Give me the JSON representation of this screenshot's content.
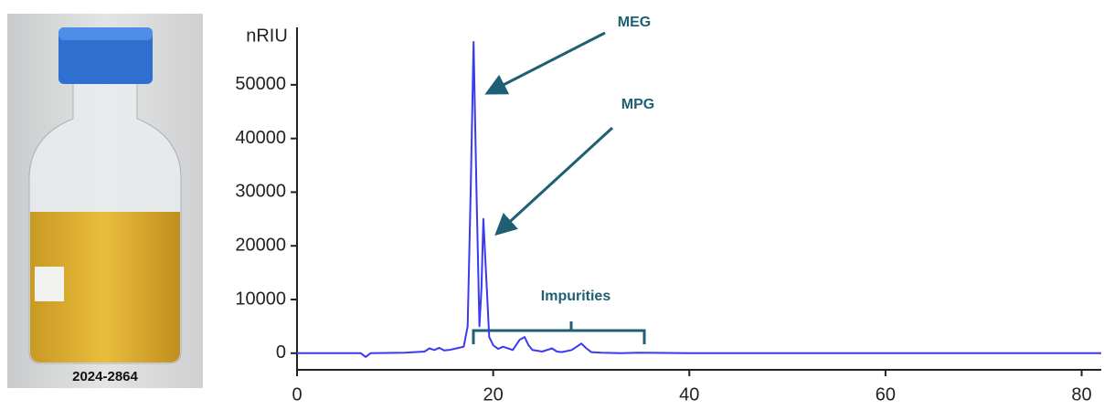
{
  "photo_label": "2024-2864",
  "chart_data": {
    "type": "line",
    "ylabel": "nRIU",
    "x": [
      0,
      6.5,
      7,
      7.5,
      11,
      13,
      13.5,
      14,
      14.5,
      15,
      15.5,
      16,
      17,
      17.4,
      17.7,
      18,
      18.3,
      18.6,
      18.8,
      19,
      19.3,
      19.6,
      20,
      20.5,
      21,
      22,
      22.7,
      23.2,
      23.6,
      24,
      25,
      26,
      26.5,
      27,
      28,
      29,
      29.5,
      30,
      31,
      33,
      35,
      40,
      50,
      70,
      82
    ],
    "series": [
      {
        "color": "#3a3af0",
        "values": [
          0,
          0,
          -700,
          0,
          100,
          300,
          900,
          600,
          1000,
          500,
          600,
          800,
          1200,
          5000,
          30000,
          58000,
          30000,
          5000,
          12000,
          25000,
          14000,
          3000,
          1500,
          800,
          1200,
          600,
          2500,
          3000,
          1500,
          600,
          300,
          900,
          300,
          200,
          600,
          1800,
          900,
          200,
          100,
          0,
          100,
          0,
          0,
          0,
          0
        ]
      }
    ],
    "xlim": [
      0,
      82
    ],
    "ylim": [
      -3100,
      60700
    ],
    "xticks": [
      0,
      20,
      40,
      60,
      80
    ],
    "yticks": [
      0,
      10000,
      20000,
      30000,
      40000,
      50000
    ],
    "annotations": [
      "MEG",
      "MPG",
      "Impurities"
    ]
  }
}
